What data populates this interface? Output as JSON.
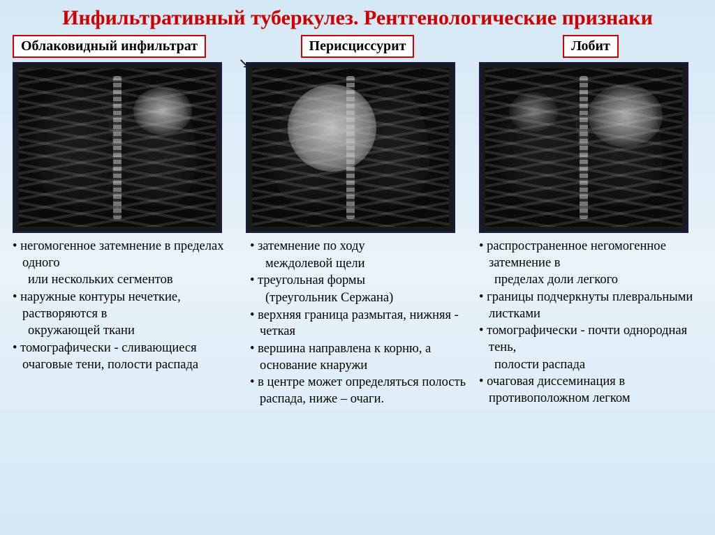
{
  "title": "Инфильтративный туберкулез. Рентгенологические признаки",
  "columns": [
    {
      "label": "Облаковидный инфильтрат",
      "items": [
        {
          "t": "негомогенное затемнение в пределах одного",
          "b": true
        },
        {
          "t": "или нескольких сегментов",
          "b": false,
          "sub": true
        },
        {
          "t": "наружные контуры нечеткие, растворяются в",
          "b": true
        },
        {
          "t": "окружающей ткани",
          "b": false,
          "sub": true
        },
        {
          "t": "томографически - сливающиеся очаговые тени, полости распада",
          "b": true
        }
      ]
    },
    {
      "label": "Перисциссурит",
      "items": [
        {
          "t": "затемнение по ходу",
          "b": true
        },
        {
          "t": "междолевой щели",
          "b": false,
          "sub": true
        },
        {
          "t": "треугольная формы",
          "b": true
        },
        {
          "t": "(треугольник Сержана)",
          "b": false,
          "sub": true
        },
        {
          "t": "верхняя граница размытая, нижняя - четкая",
          "b": true
        },
        {
          "t": "вершина направлена к корню, а основание кнаружи",
          "b": true
        },
        {
          "t": "в центре может определяться полость распада, ниже – очаги.",
          "b": true
        }
      ]
    },
    {
      "label": "Лобит",
      "items": [
        {
          "t": "распространенное негомогенное затемнение в",
          "b": true
        },
        {
          "t": "пределах доли легкого",
          "b": false,
          "sub": true
        },
        {
          "t": "границы подчеркнуты плевральными листками",
          "b": true
        },
        {
          "t": "томографически - почти однородная тень,",
          "b": true
        },
        {
          "t": "полости распада",
          "b": false,
          "sub": true
        },
        {
          "t": "очаговая диссеминация в противоположном легком",
          "b": true
        }
      ]
    }
  ],
  "colors": {
    "title": "#d00000",
    "label_border": "#d00000",
    "xray_border": "#1a1a3a",
    "bg_gradient_top": "#d4e8f5",
    "bg_gradient_bottom": "#d4e8f5"
  }
}
